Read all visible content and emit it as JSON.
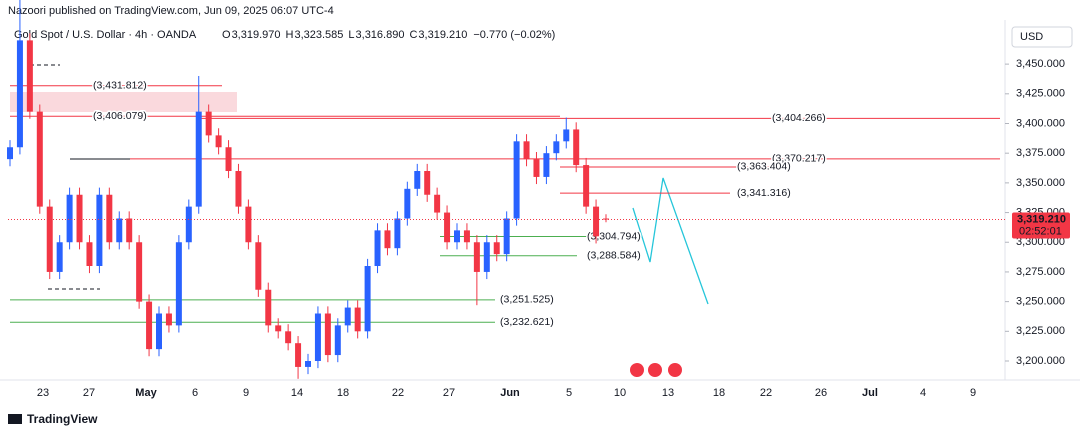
{
  "published": "Nazoori published on TradingView.com, Jun 09, 2025 06:07 UTC-4",
  "brand": "TradingView",
  "chart_data": {
    "type": "candlestick",
    "title": "Gold Spot / U.S. Dollar · 4h · OANDA",
    "legend_values": [
      {
        "prefix": "O",
        "label": "3,319.970"
      },
      {
        "prefix": "H",
        "label": "3,323.585"
      },
      {
        "prefix": "L",
        "label": "3,316.890"
      },
      {
        "prefix": "C",
        "label": "3,319.210"
      },
      {
        "prefix": "",
        "label": "−0.770 (−0.02%)"
      }
    ],
    "currency": "USD",
    "up_color": "#2962ff",
    "down_color": "#f23645",
    "ylim": [
      3184,
      3504
    ],
    "yticks": [
      {
        "value": 3200,
        "label": "3,200.000"
      },
      {
        "value": 3225,
        "label": "3,225.000"
      },
      {
        "value": 3250,
        "label": "3,250.000"
      },
      {
        "value": 3275,
        "label": "3,275.000"
      },
      {
        "value": 3300,
        "label": "3,300.000"
      },
      {
        "value": 3325,
        "label": "3,325.000"
      },
      {
        "value": 3350,
        "label": "3,350.000"
      },
      {
        "value": 3375,
        "label": "3,375.000"
      },
      {
        "value": 3400,
        "label": "3,400.000"
      },
      {
        "value": 3425,
        "label": "3,425.000"
      },
      {
        "value": 3450,
        "label": "3,450.000"
      }
    ],
    "x_labels": [
      "23",
      "27",
      "May",
      "6",
      "9",
      "14",
      "18",
      "22",
      "27",
      "Jun",
      "5",
      "10",
      "13",
      "18",
      "22",
      "26",
      "Jul",
      "4",
      "9"
    ],
    "ohlc": [
      [
        3370,
        3386,
        3364,
        3380
      ],
      [
        3380,
        3510,
        3374,
        3470
      ],
      [
        3470,
        3476,
        3404,
        3410
      ],
      [
        3410,
        3416,
        3324,
        3330
      ],
      [
        3330,
        3336,
        3269,
        3275
      ],
      [
        3275,
        3306,
        3269,
        3300
      ],
      [
        3300,
        3346,
        3294,
        3340
      ],
      [
        3340,
        3346,
        3294,
        3300
      ],
      [
        3300,
        3306,
        3274,
        3280
      ],
      [
        3280,
        3346,
        3274,
        3340
      ],
      [
        3340,
        3346,
        3294,
        3300
      ],
      [
        3300,
        3326,
        3294,
        3320
      ],
      [
        3320,
        3326,
        3294,
        3300
      ],
      [
        3300,
        3306,
        3244,
        3250
      ],
      [
        3250,
        3256,
        3204,
        3210
      ],
      [
        3210,
        3246,
        3204,
        3240
      ],
      [
        3240,
        3246,
        3224,
        3230
      ],
      [
        3230,
        3306,
        3224,
        3300
      ],
      [
        3300,
        3336,
        3294,
        3330
      ],
      [
        3330,
        3440,
        3324,
        3410
      ],
      [
        3410,
        3416,
        3384,
        3390
      ],
      [
        3390,
        3396,
        3374,
        3380
      ],
      [
        3380,
        3386,
        3354,
        3360
      ],
      [
        3360,
        3366,
        3324,
        3330
      ],
      [
        3330,
        3336,
        3294,
        3300
      ],
      [
        3300,
        3306,
        3254,
        3260
      ],
      [
        3260,
        3266,
        3224,
        3230
      ],
      [
        3230,
        3236,
        3219,
        3225
      ],
      [
        3225,
        3231,
        3209,
        3215
      ],
      [
        3215,
        3221,
        3185,
        3195
      ],
      [
        3195,
        3206,
        3189,
        3200
      ],
      [
        3200,
        3246,
        3194,
        3240
      ],
      [
        3240,
        3246,
        3199,
        3205
      ],
      [
        3205,
        3236,
        3199,
        3230
      ],
      [
        3230,
        3251,
        3224,
        3245
      ],
      [
        3245,
        3251,
        3219,
        3225
      ],
      [
        3225,
        3286,
        3219,
        3280
      ],
      [
        3280,
        3316,
        3274,
        3310
      ],
      [
        3310,
        3316,
        3289,
        3295
      ],
      [
        3295,
        3326,
        3289,
        3320
      ],
      [
        3320,
        3351,
        3314,
        3345
      ],
      [
        3345,
        3366,
        3339,
        3360
      ],
      [
        3360,
        3366,
        3334,
        3340
      ],
      [
        3340,
        3346,
        3319,
        3325
      ],
      [
        3325,
        3331,
        3294,
        3300
      ],
      [
        3300,
        3316,
        3294,
        3310
      ],
      [
        3310,
        3316,
        3294,
        3300
      ],
      [
        3300,
        3306,
        3247,
        3275
      ],
      [
        3275,
        3306,
        3269,
        3300
      ],
      [
        3300,
        3306,
        3284,
        3290
      ],
      [
        3290,
        3326,
        3284,
        3320
      ],
      [
        3320,
        3391,
        3314,
        3385
      ],
      [
        3385,
        3391,
        3364,
        3370
      ],
      [
        3370,
        3376,
        3349,
        3355
      ],
      [
        3355,
        3381,
        3349,
        3375
      ],
      [
        3375,
        3391,
        3369,
        3385
      ],
      [
        3385,
        3405,
        3379,
        3395
      ],
      [
        3395,
        3401,
        3359,
        3365
      ],
      [
        3365,
        3371,
        3324,
        3330
      ],
      [
        3330,
        3336,
        3299,
        3305
      ],
      [
        3319.97,
        3323.585,
        3316.89,
        3319.21
      ]
    ],
    "levels": [
      {
        "value": 3431.812,
        "label": "(3,431.812)",
        "color": "#f23645"
      },
      {
        "value": 3406.079,
        "label": "(3,406.079)",
        "color": "#f23645"
      },
      {
        "value": 3404.266,
        "label": "(3,404.266)",
        "color": "#f23645"
      },
      {
        "value": 3370.217,
        "label": "(3,370.217)",
        "color": "#f23645"
      },
      {
        "value": 3363.404,
        "label": "(3,363.404)",
        "color": "#f23645"
      },
      {
        "value": 3341.316,
        "label": "(3,341.316)",
        "color": "#f23645"
      },
      {
        "value": 3304.794,
        "label": "(3,304.794)",
        "color": "#4caf50"
      },
      {
        "value": 3288.584,
        "label": "(3,288.584)",
        "color": "#4caf50"
      },
      {
        "value": 3251.525,
        "label": "(3,251.525)",
        "color": "#4caf50"
      },
      {
        "value": 3232.621,
        "label": "(3,232.621)",
        "color": "#4caf50"
      }
    ],
    "last_price": {
      "value": 3319.21,
      "label": "3,319.210",
      "countdown": "02:52:01"
    }
  }
}
